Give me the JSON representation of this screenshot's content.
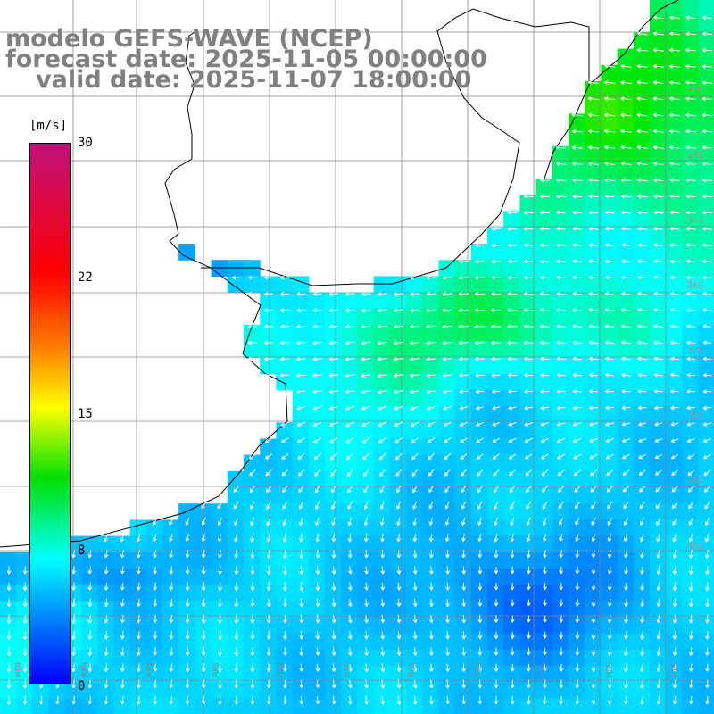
{
  "title": {
    "line1": "modelo GEFS-WAVE (NCEP)",
    "line2": "forecast date: 2025-11-05 00:00:00",
    "line3": "valid date: 2025-11-07 18:00:00"
  },
  "colorbar": {
    "unit": "[m/s]",
    "min": 0,
    "max": 30,
    "ticks": [
      "30",
      "22",
      "15",
      "8",
      "0"
    ],
    "tick_values": [
      30,
      22,
      15,
      8,
      0
    ],
    "colors": [
      "#0000ff",
      "#00ffff",
      "#00e000",
      "#ffff00",
      "#ff8000",
      "#ff0000",
      "#c0107a"
    ]
  },
  "map": {
    "lat_labels": [
      "33S",
      "34S",
      "35S",
      "36S",
      "37S",
      "38S",
      "39S",
      "40S"
    ],
    "lon_labels": [
      "61W",
      "60W",
      "59W",
      "58W",
      "57W",
      "56W",
      "55W",
      "54W",
      "53W",
      "52W",
      "51W"
    ],
    "land_color": "#ffffff",
    "coast_color": "#000000",
    "grid_color": "#888888",
    "arrow_color": "#ffffff"
  }
}
